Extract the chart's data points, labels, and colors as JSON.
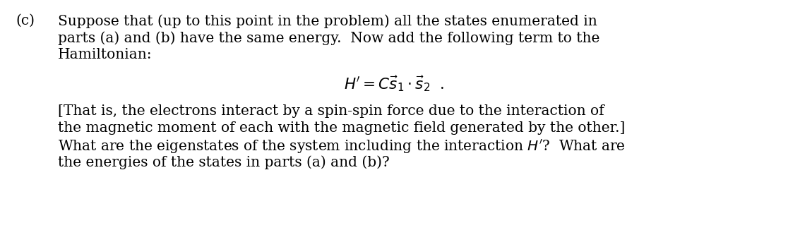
{
  "background_color": "#ffffff",
  "text_color": "#000000",
  "fig_width": 11.16,
  "fig_height": 3.43,
  "dpi": 100,
  "font_family": "serif",
  "paragraph_c_label": "(c)",
  "line1": "Suppose that (up to this point in the problem) all the states enumerated in",
  "line2": "parts (a) and (b) have the same energy.  Now add the following term to the",
  "line3": "Hamiltonian:",
  "equation": "$H^{\\prime} = C\\vec{s}_1 \\cdot \\vec{s}_2$  .",
  "line4": "[That is, the electrons interact by a spin-spin force due to the interaction of",
  "line5": "the magnetic moment of each with the magnetic field generated by the other.]",
  "line6": "What are the eigenstates of the system including the interaction $H^{\\prime}$?  What are",
  "line7": "the energies of the states in parts (a) and (b)?"
}
